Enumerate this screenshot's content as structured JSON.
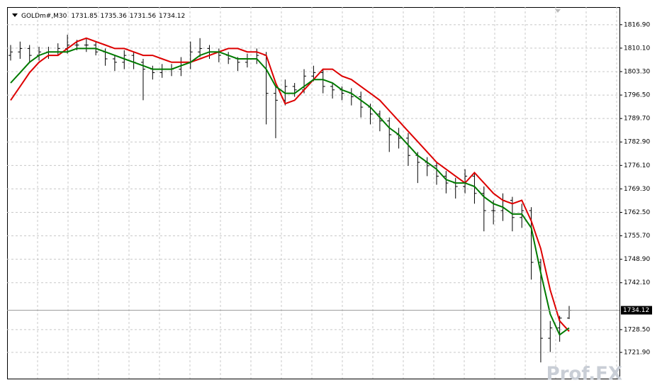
{
  "chart_data": {
    "type": "ohlc",
    "symbol": "GOLDm#,M30",
    "watermark": "Prof.FX",
    "categories": [
      null,
      null,
      null,
      null,
      null,
      null,
      null,
      null,
      null,
      null,
      null,
      null,
      null,
      null,
      null,
      null,
      null,
      null,
      null,
      null,
      null,
      null,
      null,
      null,
      null,
      null,
      null,
      null,
      null,
      null,
      null,
      null,
      null,
      null,
      null,
      null,
      null,
      null,
      null,
      null,
      null,
      null,
      null,
      null,
      null,
      null,
      null,
      null,
      null,
      null,
      null,
      null,
      null,
      null,
      null,
      null,
      null,
      null,
      null,
      null
    ],
    "open": [
      1808,
      1809,
      1810,
      1808,
      1809,
      1809,
      1810,
      1811,
      1811,
      1811,
      1809,
      1807,
      1806,
      1808,
      1806,
      1804,
      1803,
      1804,
      1804,
      1806,
      1809,
      1810,
      1809,
      1808,
      1807,
      1806,
      1807,
      1808,
      1797,
      1795,
      1799,
      1798,
      1802,
      1803,
      1799,
      1798,
      1797,
      1796,
      1793,
      1791,
      1789,
      1785,
      1784,
      1779,
      1777,
      1776,
      1773,
      1771,
      1770,
      1773,
      1768,
      1763,
      1763,
      1766,
      1761,
      1763,
      1748,
      1726,
      1729,
      1731.85
    ],
    "high": [
      1811,
      1812,
      1811,
      1810.5,
      1810.5,
      1811.5,
      1814,
      1812.5,
      1813,
      1812,
      1810,
      1808,
      1809.5,
      1809,
      1807,
      1805,
      1805.5,
      1805.5,
      1807.5,
      1812,
      1813,
      1811,
      1810,
      1809,
      1807.5,
      1808.5,
      1810,
      1809,
      1799,
      1801,
      1800,
      1804,
      1805,
      1804,
      1800,
      1799,
      1798.5,
      1797.5,
      1794,
      1792,
      1790,
      1787,
      1785.5,
      1780,
      1778.5,
      1777,
      1774.5,
      1772.5,
      1775,
      1774,
      1770,
      1766,
      1768,
      1767,
      1765,
      1764,
      1749,
      1731,
      1732.5,
      1735.36
    ],
    "low": [
      1806.5,
      1807,
      1806,
      1806.5,
      1807,
      1808,
      1808.5,
      1809.5,
      1809,
      1808,
      1805,
      1803.5,
      1804,
      1804,
      1795,
      1801,
      1801.5,
      1802,
      1802,
      1804,
      1807.5,
      1807,
      1806,
      1805.5,
      1803.5,
      1804.5,
      1805.5,
      1788,
      1784,
      1793.5,
      1796,
      1797,
      1800.5,
      1797,
      1795.5,
      1795,
      1793.5,
      1790,
      1788,
      1786,
      1780,
      1781,
      1776,
      1771,
      1773,
      1770.5,
      1768,
      1766.5,
      1768,
      1765,
      1757,
      1759,
      1760,
      1757,
      1758,
      1743,
      1719,
      1722,
      1725,
      1731.56
    ],
    "close": [
      1809,
      1810,
      1808,
      1809,
      1809,
      1810,
      1811,
      1811,
      1811,
      1809,
      1807,
      1806,
      1808,
      1806,
      1804,
      1803,
      1804,
      1804,
      1806,
      1809,
      1810,
      1809,
      1808,
      1807,
      1806,
      1807,
      1808,
      1797,
      1795,
      1799,
      1798,
      1802,
      1803,
      1799,
      1798,
      1797,
      1796,
      1793,
      1791,
      1789,
      1785,
      1784,
      1779,
      1777,
      1776,
      1773,
      1771,
      1770,
      1773,
      1768,
      1763,
      1763,
      1766,
      1761,
      1763,
      1748,
      1726,
      1729,
      1731.85,
      1734.12
    ],
    "bar_color": "#000000",
    "lines": [
      {
        "color": "#dd0000",
        "values": [
          1795,
          1799,
          1803,
          1806,
          1808,
          1808,
          1810,
          1812,
          1813,
          1812,
          1811,
          1810,
          1810,
          1809,
          1808,
          1808,
          1807,
          1806,
          1806,
          1806,
          1807,
          1808,
          1809,
          1810,
          1810,
          1809,
          1809,
          1808,
          1800,
          1794,
          1795,
          1798,
          1801,
          1804,
          1804,
          1802,
          1801,
          1799,
          1797,
          1795,
          1792,
          1789,
          1786,
          1783,
          1780,
          1777,
          1775,
          1773,
          1771,
          1774,
          1771,
          1768,
          1766,
          1765,
          1766,
          1760,
          1752,
          1740,
          1731,
          1728
        ]
      },
      {
        "color": "#007a00",
        "values": [
          1800,
          1803,
          1806,
          1808,
          1809,
          1809,
          1809,
          1810,
          1810,
          1810,
          1809,
          1808,
          1807,
          1806,
          1805,
          1804,
          1804,
          1804,
          1805,
          1806,
          1808,
          1809,
          1809,
          1808,
          1807,
          1807,
          1807,
          1804,
          1799,
          1797,
          1797,
          1799,
          1801,
          1801,
          1800,
          1798,
          1797,
          1795,
          1793,
          1790,
          1787,
          1785,
          1782,
          1779,
          1777,
          1775,
          1772,
          1771,
          1771,
          1770,
          1767,
          1765,
          1764,
          1762,
          1762,
          1758,
          1745,
          1733,
          1727,
          1729
        ]
      }
    ],
    "ylim": [
      1714.3,
      1822.0
    ],
    "yticks": [
      {
        "value": 1816.9,
        "label": "1816.90"
      },
      {
        "value": 1810.1,
        "label": "1810.10"
      },
      {
        "value": 1803.3,
        "label": "1803.30"
      },
      {
        "value": 1796.5,
        "label": "1796.50"
      },
      {
        "value": 1789.7,
        "label": "1789.70"
      },
      {
        "value": 1782.9,
        "label": "1782.90"
      },
      {
        "value": 1776.1,
        "label": "1776.10"
      },
      {
        "value": 1769.3,
        "label": "1769.30"
      },
      {
        "value": 1762.5,
        "label": "1762.50"
      },
      {
        "value": 1755.7,
        "label": "1755.70"
      },
      {
        "value": 1748.9,
        "label": "1748.90"
      },
      {
        "value": 1742.1,
        "label": "1742.10"
      },
      {
        "value": 1728.5,
        "label": "1728.50"
      },
      {
        "value": 1721.9,
        "label": "1721.90"
      }
    ],
    "grid": true
  }
}
